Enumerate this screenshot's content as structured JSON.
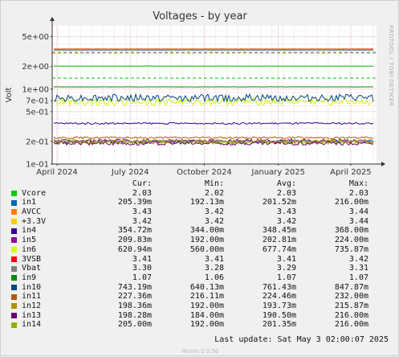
{
  "chart_data": {
    "type": "line",
    "title": "Voltages - by year",
    "ylabel": "Volt",
    "y_scale": "log",
    "ylim": [
      0.1,
      7
    ],
    "xlim": [
      "2024-03-26",
      "2025-05-03"
    ],
    "y_ticks": [
      {
        "value": 0.1,
        "label": "1e-01"
      },
      {
        "value": 0.2,
        "label": "2e-01"
      },
      {
        "value": 0.5,
        "label": "5e-01"
      },
      {
        "value": 0.7,
        "label": "7e-01"
      },
      {
        "value": 1,
        "label": "1e+00"
      },
      {
        "value": 2,
        "label": "2e+00"
      },
      {
        "value": 5,
        "label": "5e+00"
      }
    ],
    "x_ticks": [
      {
        "value": "2024-04-01",
        "label": "April 2024"
      },
      {
        "value": "2024-07-01",
        "label": "July 2024"
      },
      {
        "value": "2024-10-01",
        "label": "October 2024"
      },
      {
        "value": "2025-01-01",
        "label": "January 2025"
      },
      {
        "value": "2025-04-01",
        "label": "April 2025"
      }
    ],
    "grid": true,
    "columns": [
      "Cur:",
      "Min:",
      "Avg:",
      "Max:"
    ],
    "series": [
      {
        "name": "Vcore",
        "color": "#00cc00",
        "cur": "2.03",
        "min": "2.02",
        "avg": "2.03",
        "max": "2.03",
        "level": 2.03,
        "lo": 2.02,
        "hi": 2.03
      },
      {
        "name": "in1",
        "color": "#0066b3",
        "cur": "205.39m",
        "min": "192.13m",
        "avg": "201.52m",
        "max": "216.00m",
        "level": 0.2015,
        "lo": 0.19213,
        "hi": 0.216
      },
      {
        "name": "AVCC",
        "color": "#ff8000",
        "cur": "3.43",
        "min": "3.42",
        "avg": "3.43",
        "max": "3.44",
        "level": 3.43,
        "lo": 3.42,
        "hi": 3.44
      },
      {
        "name": "+3.3V",
        "color": "#ffcc00",
        "cur": "3.42",
        "min": "3.42",
        "avg": "3.42",
        "max": "3.44",
        "level": 3.42,
        "lo": 3.42,
        "hi": 3.44
      },
      {
        "name": "in4",
        "color": "#330099",
        "cur": "354.72m",
        "min": "344.00m",
        "avg": "348.45m",
        "max": "368.00m",
        "level": 0.3485,
        "lo": 0.344,
        "hi": 0.368
      },
      {
        "name": "in5",
        "color": "#990099",
        "cur": "209.83m",
        "min": "192.00m",
        "avg": "202.81m",
        "max": "224.00m",
        "level": 0.2028,
        "lo": 0.192,
        "hi": 0.224
      },
      {
        "name": "in6",
        "color": "#ccff00",
        "cur": "620.94m",
        "min": "560.00m",
        "avg": "677.74m",
        "max": "735.87m",
        "level": 0.6777,
        "lo": 0.56,
        "hi": 0.73587
      },
      {
        "name": "3VSB",
        "color": "#ff0000",
        "cur": "3.41",
        "min": "3.41",
        "avg": "3.41",
        "max": "3.42",
        "level": 3.41,
        "lo": 3.41,
        "hi": 3.42
      },
      {
        "name": "Vbat",
        "color": "#808080",
        "cur": "3.30",
        "min": "3.28",
        "avg": "3.29",
        "max": "3.31",
        "level": 3.29,
        "lo": 3.28,
        "hi": 3.31
      },
      {
        "name": "in9",
        "color": "#008f00",
        "cur": "1.07",
        "min": "1.06",
        "avg": "1.07",
        "max": "1.07",
        "level": 1.07,
        "lo": 1.06,
        "hi": 1.07
      },
      {
        "name": "in10",
        "color": "#00487d",
        "cur": "743.19m",
        "min": "640.13m",
        "avg": "761.43m",
        "max": "847.87m",
        "level": 0.7614,
        "lo": 0.64013,
        "hi": 0.84787
      },
      {
        "name": "in11",
        "color": "#b35a00",
        "cur": "227.36m",
        "min": "216.11m",
        "avg": "224.46m",
        "max": "232.00m",
        "level": 0.2245,
        "lo": 0.21611,
        "hi": 0.232
      },
      {
        "name": "in12",
        "color": "#b38f00",
        "cur": "198.36m",
        "min": "192.00m",
        "avg": "193.73m",
        "max": "215.87m",
        "level": 0.1937,
        "lo": 0.192,
        "hi": 0.21587
      },
      {
        "name": "in13",
        "color": "#6b006b",
        "cur": "198.28m",
        "min": "184.00m",
        "avg": "190.50m",
        "max": "216.00m",
        "level": 0.1905,
        "lo": 0.184,
        "hi": 0.216
      },
      {
        "name": "in14",
        "color": "#8fb300",
        "cur": "205.00m",
        "min": "192.00m",
        "avg": "201.35m",
        "max": "216.00m",
        "level": 0.2014,
        "lo": 0.192,
        "hi": 0.216
      }
    ],
    "dashed_lines": [
      {
        "value": 3.1,
        "color": "#ff8000"
      },
      {
        "value": 3.0,
        "color": "#ffcc00"
      },
      {
        "value": 3.08,
        "color": "#808080"
      },
      {
        "value": 1.4,
        "color": "#00cc00"
      }
    ]
  },
  "side_text": "RRDTOOL / TOBI OETIKER",
  "last_update": "Last update:  Sat May  3 02:00:07 2025",
  "footer": "Munin 2.0.56"
}
